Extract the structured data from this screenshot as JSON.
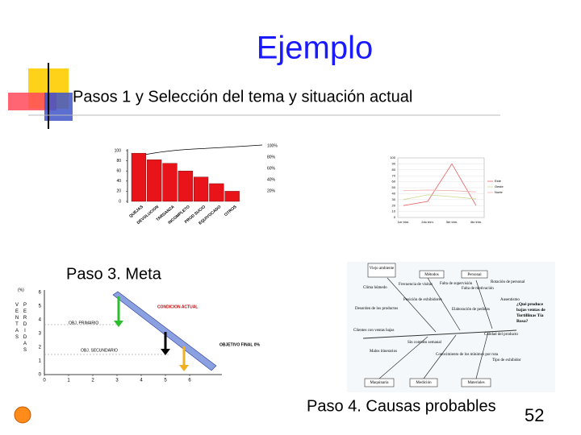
{
  "title": "Ejemplo",
  "subtitle": "Pasos 1 y Selección del tema y situación actual",
  "step3": "Paso 3. Meta",
  "step4": "Paso 4. Causas probables",
  "page_number": "52",
  "pareto": {
    "type": "bar",
    "color": "#e8141a",
    "categories": [
      "QUEJAS",
      "DEVOLUCION",
      "TARDANZA",
      "INCOMPLETO",
      "PROD SUCIO",
      "EQUIVOCADO",
      "OTROS"
    ],
    "values": [
      95,
      82,
      75,
      60,
      48,
      35,
      20
    ],
    "ylim": [
      0,
      100
    ],
    "yticks": [
      0,
      20,
      40,
      60,
      80,
      100
    ],
    "pct_ticks": [
      "20%",
      "40%",
      "60%",
      "80%",
      "100%"
    ]
  },
  "trend": {
    "type": "line",
    "categories": [
      "1er trim.",
      "2do trim.",
      "3er trim.",
      "4to trim."
    ],
    "series": [
      {
        "name": "Este",
        "color": "#e86060",
        "values": [
          20,
          27,
          90,
          20
        ]
      },
      {
        "name": "Oeste",
        "color": "#c8d890",
        "values": [
          30,
          38,
          35,
          31
        ]
      },
      {
        "name": "Norte",
        "color": "#f0b0b0",
        "values": [
          45,
          46,
          45,
          43
        ]
      }
    ],
    "ylim": [
      0,
      100
    ],
    "yticks": [
      0,
      10,
      20,
      30,
      40,
      50,
      60,
      70,
      80,
      90,
      100
    ]
  },
  "goal": {
    "unit": "(%)",
    "left_label": "VENTAS",
    "right_label": "PERDIDAS",
    "yticks": [
      0,
      1,
      2,
      3,
      4,
      5,
      6
    ],
    "xticks": [
      0,
      1,
      2,
      3,
      4,
      5,
      6
    ],
    "labels": [
      "CONDICION ACTUAL",
      "OBJ. PRIMARIO",
      "OBJ. SECUNDARIO",
      "OBJETIVO FINAL 0%"
    ]
  },
  "fishbone": {
    "effect": "¿Qué produce bajas ventas de Tortillinas Tía Rosa?",
    "causes": [
      "Viejo ambiente",
      "Métodos",
      "Personal",
      "Clima húmedo",
      "Frecuencia de visitas",
      "Falta de supervisión",
      "Falta de motivación",
      "Rotación de personal",
      "Posición de exhibidores",
      "Desorden de los productos",
      "Elaboración de pedidos",
      "Ausentismo",
      "Clientes con ventas bajas",
      "Sin contrato semanal",
      "Calidad del producto",
      "Malos itinerarios",
      "Conocimiento de los mínimos por ruta",
      "Tipo de exhibidor",
      "Maquinaria",
      "Medición",
      "Materiales"
    ]
  }
}
